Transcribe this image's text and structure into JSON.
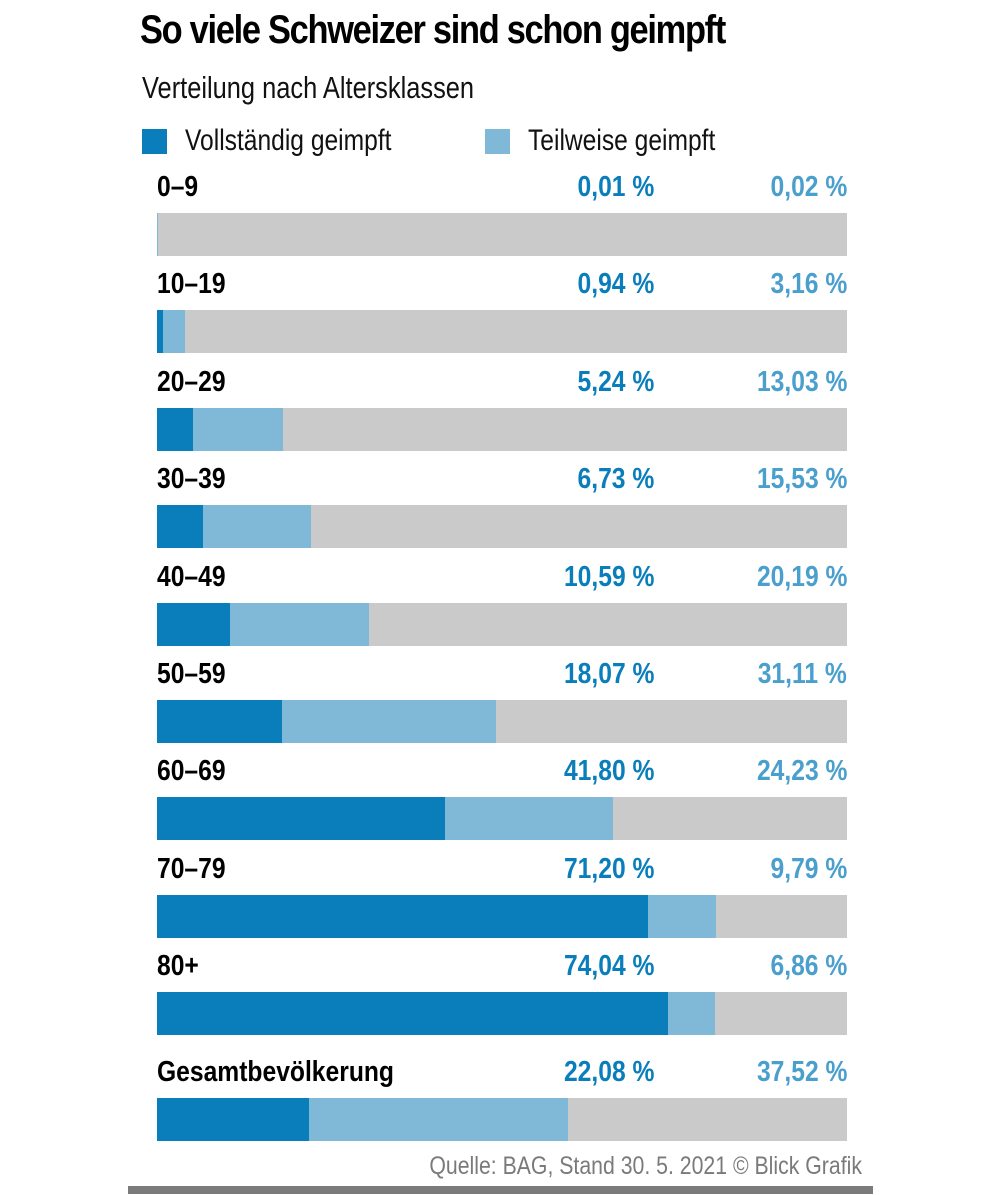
{
  "chart_data": {
    "type": "bar",
    "orientation": "horizontal-stacked",
    "title": "So viele Schweizer sind schon geimpft",
    "subtitle": "Verteilung nach Altersklassen",
    "xlim": [
      0,
      100
    ],
    "unit": "%",
    "grid": false,
    "legend_position": "top-left",
    "categories": [
      "0–9",
      "10–19",
      "20–29",
      "30–39",
      "40–49",
      "50–59",
      "60–69",
      "70–79",
      "80+",
      "Gesamtbevölkerung"
    ],
    "series": [
      {
        "name": "Vollständig geimpft",
        "color": "#0a7ebb",
        "values": [
          0.01,
          0.94,
          5.24,
          6.73,
          10.59,
          18.07,
          41.8,
          71.2,
          74.04,
          22.08
        ],
        "labels": [
          "0,01 %",
          "0,94 %",
          "5,24 %",
          "6,73 %",
          "10,59 %",
          "18,07 %",
          "41,80 %",
          "71,20 %",
          "74,04 %",
          "22,08 %"
        ]
      },
      {
        "name": "Teilweise geimpft",
        "color": "#80b8d8",
        "values": [
          0.02,
          3.16,
          13.03,
          15.53,
          20.19,
          31.11,
          24.23,
          9.79,
          6.86,
          37.52
        ],
        "labels": [
          "0,02 %",
          "3,16 %",
          "13,03 %",
          "15,53 %",
          "20,19 %",
          "31,11 %",
          "24,23 %",
          "9,79 %",
          "6,86 %",
          "37,52 %"
        ]
      }
    ],
    "remainder_color": "#cacaca",
    "full_label_color": "#0a7ebb",
    "partial_label_color": "#4a9fcd",
    "source": "Quelle: BAG, Stand 30. 5. 2021  © Blick Grafik"
  }
}
